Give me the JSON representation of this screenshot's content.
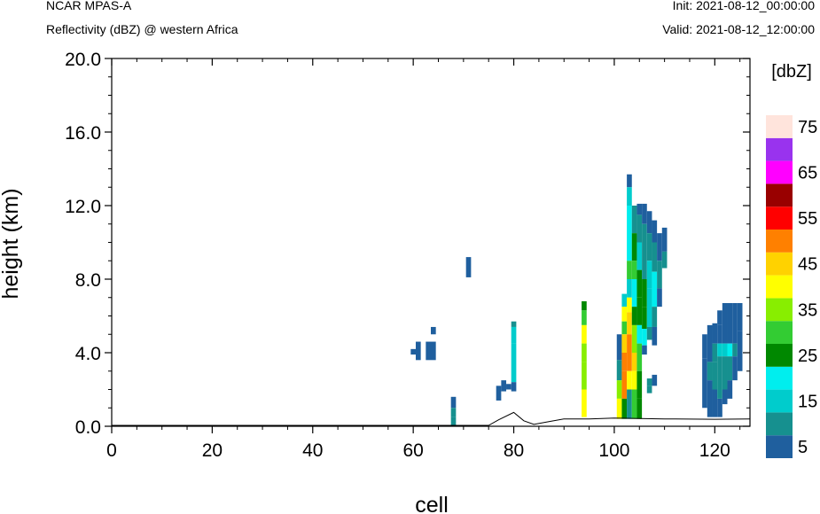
{
  "header": {
    "model": "NCAR MPAS-A",
    "field": "Reflectivity (dBZ) @ western Africa",
    "init": "Init: 2021-08-12_00:00:00",
    "valid": "Valid: 2021-08-12_12:00:00"
  },
  "chart_data": {
    "type": "heatmap",
    "title": "Reflectivity (dBZ) @ western Africa",
    "xlabel": "cell",
    "ylabel": "height (km)",
    "xlim": [
      0,
      127
    ],
    "ylim": [
      0,
      20
    ],
    "x_ticks": [
      "0",
      "20",
      "40",
      "60",
      "80",
      "100",
      "120"
    ],
    "y_ticks": [
      "0.0",
      "4.0",
      "8.0",
      "12.0",
      "16.0",
      "20.0"
    ],
    "colorbar": {
      "unit": "[dbZ]",
      "labels": [
        "5",
        "15",
        "25",
        "35",
        "45",
        "55",
        "65",
        "75"
      ],
      "levels": [
        5,
        10,
        15,
        20,
        25,
        30,
        35,
        40,
        45,
        50,
        55,
        60,
        65,
        70,
        75
      ],
      "colors": [
        "#1f5f9e",
        "#16908f",
        "#00cccc",
        "#00eeee",
        "#008800",
        "#33cc33",
        "#88ee00",
        "#ffff00",
        "#ffd200",
        "#ff8000",
        "#ff0000",
        "#990000",
        "#ff00ff",
        "#9933ee",
        "#ffe4dc"
      ]
    },
    "terrain": [
      [
        0,
        0.05
      ],
      [
        75,
        0.05
      ],
      [
        77,
        0.35
      ],
      [
        80,
        0.75
      ],
      [
        82,
        0.3
      ],
      [
        84,
        0.1
      ],
      [
        87,
        0.25
      ],
      [
        90,
        0.4
      ],
      [
        95,
        0.4
      ],
      [
        100,
        0.45
      ],
      [
        110,
        0.4
      ],
      [
        120,
        0.38
      ],
      [
        127,
        0.4
      ]
    ],
    "cells": [
      [
        60,
        3.9,
        4.2,
        5
      ],
      [
        61,
        3.6,
        4.6,
        5
      ],
      [
        63,
        3.6,
        4.6,
        5
      ],
      [
        64,
        5.0,
        5.4,
        5
      ],
      [
        64,
        3.6,
        4.6,
        5
      ],
      [
        68,
        1.0,
        1.6,
        5
      ],
      [
        68,
        0.5,
        1.0,
        10
      ],
      [
        68,
        0.0,
        0.5,
        10
      ],
      [
        71,
        8.1,
        9.2,
        5
      ],
      [
        77,
        1.4,
        2.2,
        5
      ],
      [
        78,
        1.9,
        2.5,
        5
      ],
      [
        79,
        2.0,
        2.3,
        5
      ],
      [
        80,
        5.4,
        5.7,
        10
      ],
      [
        80,
        4.5,
        5.4,
        15
      ],
      [
        80,
        2.4,
        4.5,
        15
      ],
      [
        80,
        1.9,
        2.4,
        5
      ],
      [
        94,
        6.3,
        6.8,
        25
      ],
      [
        94,
        5.5,
        6.3,
        30
      ],
      [
        94,
        4.5,
        5.5,
        40
      ],
      [
        94,
        3.5,
        4.5,
        35
      ],
      [
        94,
        2.0,
        3.5,
        35
      ],
      [
        94,
        0.5,
        2.0,
        40
      ],
      [
        101,
        3.6,
        5.0,
        5
      ],
      [
        101,
        2.5,
        3.6,
        10
      ],
      [
        101,
        1.5,
        2.5,
        35
      ],
      [
        101,
        0.4,
        1.5,
        40
      ],
      [
        102,
        6.5,
        7.2,
        15
      ],
      [
        102,
        5.7,
        6.5,
        40
      ],
      [
        102,
        5.0,
        5.7,
        30
      ],
      [
        102,
        4.0,
        5.0,
        45
      ],
      [
        102,
        3.0,
        4.0,
        50
      ],
      [
        102,
        1.5,
        3.0,
        50
      ],
      [
        102,
        0.4,
        1.5,
        25
      ],
      [
        103,
        13.0,
        13.7,
        5
      ],
      [
        103,
        12.0,
        13.0,
        15
      ],
      [
        103,
        10.0,
        12.0,
        20
      ],
      [
        103,
        9.0,
        10.0,
        20
      ],
      [
        103,
        8.0,
        9.0,
        30
      ],
      [
        103,
        7.0,
        8.0,
        15
      ],
      [
        103,
        6.2,
        7.0,
        40
      ],
      [
        103,
        5.0,
        6.2,
        45
      ],
      [
        103,
        3.0,
        5.0,
        50
      ],
      [
        103,
        2.0,
        3.0,
        40
      ],
      [
        103,
        0.4,
        2.0,
        10
      ],
      [
        104,
        10.5,
        12.0,
        10
      ],
      [
        104,
        9.0,
        10.5,
        25
      ],
      [
        104,
        8.0,
        9.0,
        30
      ],
      [
        104,
        6.5,
        8.0,
        20
      ],
      [
        104,
        5.5,
        6.5,
        25
      ],
      [
        104,
        4.0,
        5.5,
        35
      ],
      [
        104,
        3.0,
        4.0,
        45
      ],
      [
        104,
        2.0,
        3.0,
        40
      ],
      [
        104,
        0.4,
        2.0,
        30
      ],
      [
        105,
        11.5,
        12.1,
        5
      ],
      [
        105,
        10.0,
        11.5,
        10
      ],
      [
        105,
        8.5,
        10.0,
        15
      ],
      [
        105,
        7.0,
        8.5,
        25
      ],
      [
        105,
        5.5,
        7.0,
        25
      ],
      [
        105,
        4.5,
        5.5,
        20
      ],
      [
        105,
        3.0,
        4.5,
        30
      ],
      [
        105,
        1.5,
        3.0,
        25
      ],
      [
        105,
        0.4,
        1.5,
        25
      ],
      [
        106,
        11.0,
        12.1,
        5
      ],
      [
        106,
        8.0,
        11.0,
        10
      ],
      [
        106,
        6.5,
        8.0,
        25
      ],
      [
        106,
        5.3,
        6.5,
        25
      ],
      [
        106,
        4.4,
        5.3,
        20
      ],
      [
        106,
        3.9,
        4.4,
        5
      ],
      [
        107,
        10.5,
        11.7,
        5
      ],
      [
        107,
        9.0,
        10.5,
        10
      ],
      [
        107,
        7.5,
        9.0,
        15
      ],
      [
        107,
        5.4,
        7.5,
        15
      ],
      [
        107,
        4.7,
        5.4,
        10
      ],
      [
        107,
        2.2,
        2.6,
        10
      ],
      [
        107,
        1.8,
        2.2,
        10
      ],
      [
        108,
        10.0,
        11.2,
        5
      ],
      [
        108,
        8.4,
        10.0,
        10
      ],
      [
        108,
        6.5,
        8.4,
        20
      ],
      [
        108,
        5.4,
        6.5,
        10
      ],
      [
        108,
        4.4,
        5.4,
        5
      ],
      [
        108,
        2.2,
        2.8,
        5
      ],
      [
        109,
        9.0,
        10.5,
        5
      ],
      [
        109,
        7.5,
        9.0,
        10
      ],
      [
        109,
        6.5,
        7.5,
        5
      ],
      [
        110,
        9.5,
        10.8,
        5
      ],
      [
        110,
        8.6,
        9.5,
        10
      ],
      [
        118,
        3.7,
        5.0,
        5
      ],
      [
        118,
        1.0,
        3.7,
        5
      ],
      [
        119,
        4.0,
        5.5,
        5
      ],
      [
        119,
        3.5,
        4.0,
        5
      ],
      [
        119,
        2.5,
        3.5,
        10
      ],
      [
        119,
        0.5,
        2.5,
        5
      ],
      [
        120,
        4.5,
        5.6,
        5
      ],
      [
        120,
        3.5,
        4.5,
        10
      ],
      [
        120,
        2.0,
        3.5,
        10
      ],
      [
        120,
        0.5,
        2.0,
        5
      ],
      [
        121,
        5.5,
        6.3,
        5
      ],
      [
        121,
        4.5,
        5.5,
        5
      ],
      [
        121,
        3.8,
        4.5,
        15
      ],
      [
        121,
        1.5,
        3.8,
        10
      ],
      [
        121,
        0.5,
        1.5,
        5
      ],
      [
        122,
        6.0,
        6.7,
        5
      ],
      [
        122,
        4.5,
        6.0,
        5
      ],
      [
        122,
        3.8,
        4.5,
        15
      ],
      [
        122,
        2.0,
        3.8,
        10
      ],
      [
        122,
        1.2,
        2.0,
        5
      ],
      [
        123,
        6.0,
        6.7,
        5
      ],
      [
        123,
        4.5,
        6.0,
        5
      ],
      [
        123,
        3.8,
        4.5,
        20
      ],
      [
        123,
        2.5,
        3.8,
        10
      ],
      [
        123,
        1.5,
        2.5,
        5
      ],
      [
        124,
        6.0,
        6.7,
        5
      ],
      [
        124,
        4.5,
        6.0,
        5
      ],
      [
        124,
        3.8,
        4.5,
        10
      ],
      [
        124,
        2.5,
        3.8,
        5
      ],
      [
        125,
        5.2,
        6.7,
        5
      ],
      [
        125,
        4.0,
        5.2,
        5
      ],
      [
        125,
        3.0,
        4.0,
        5
      ]
    ]
  }
}
